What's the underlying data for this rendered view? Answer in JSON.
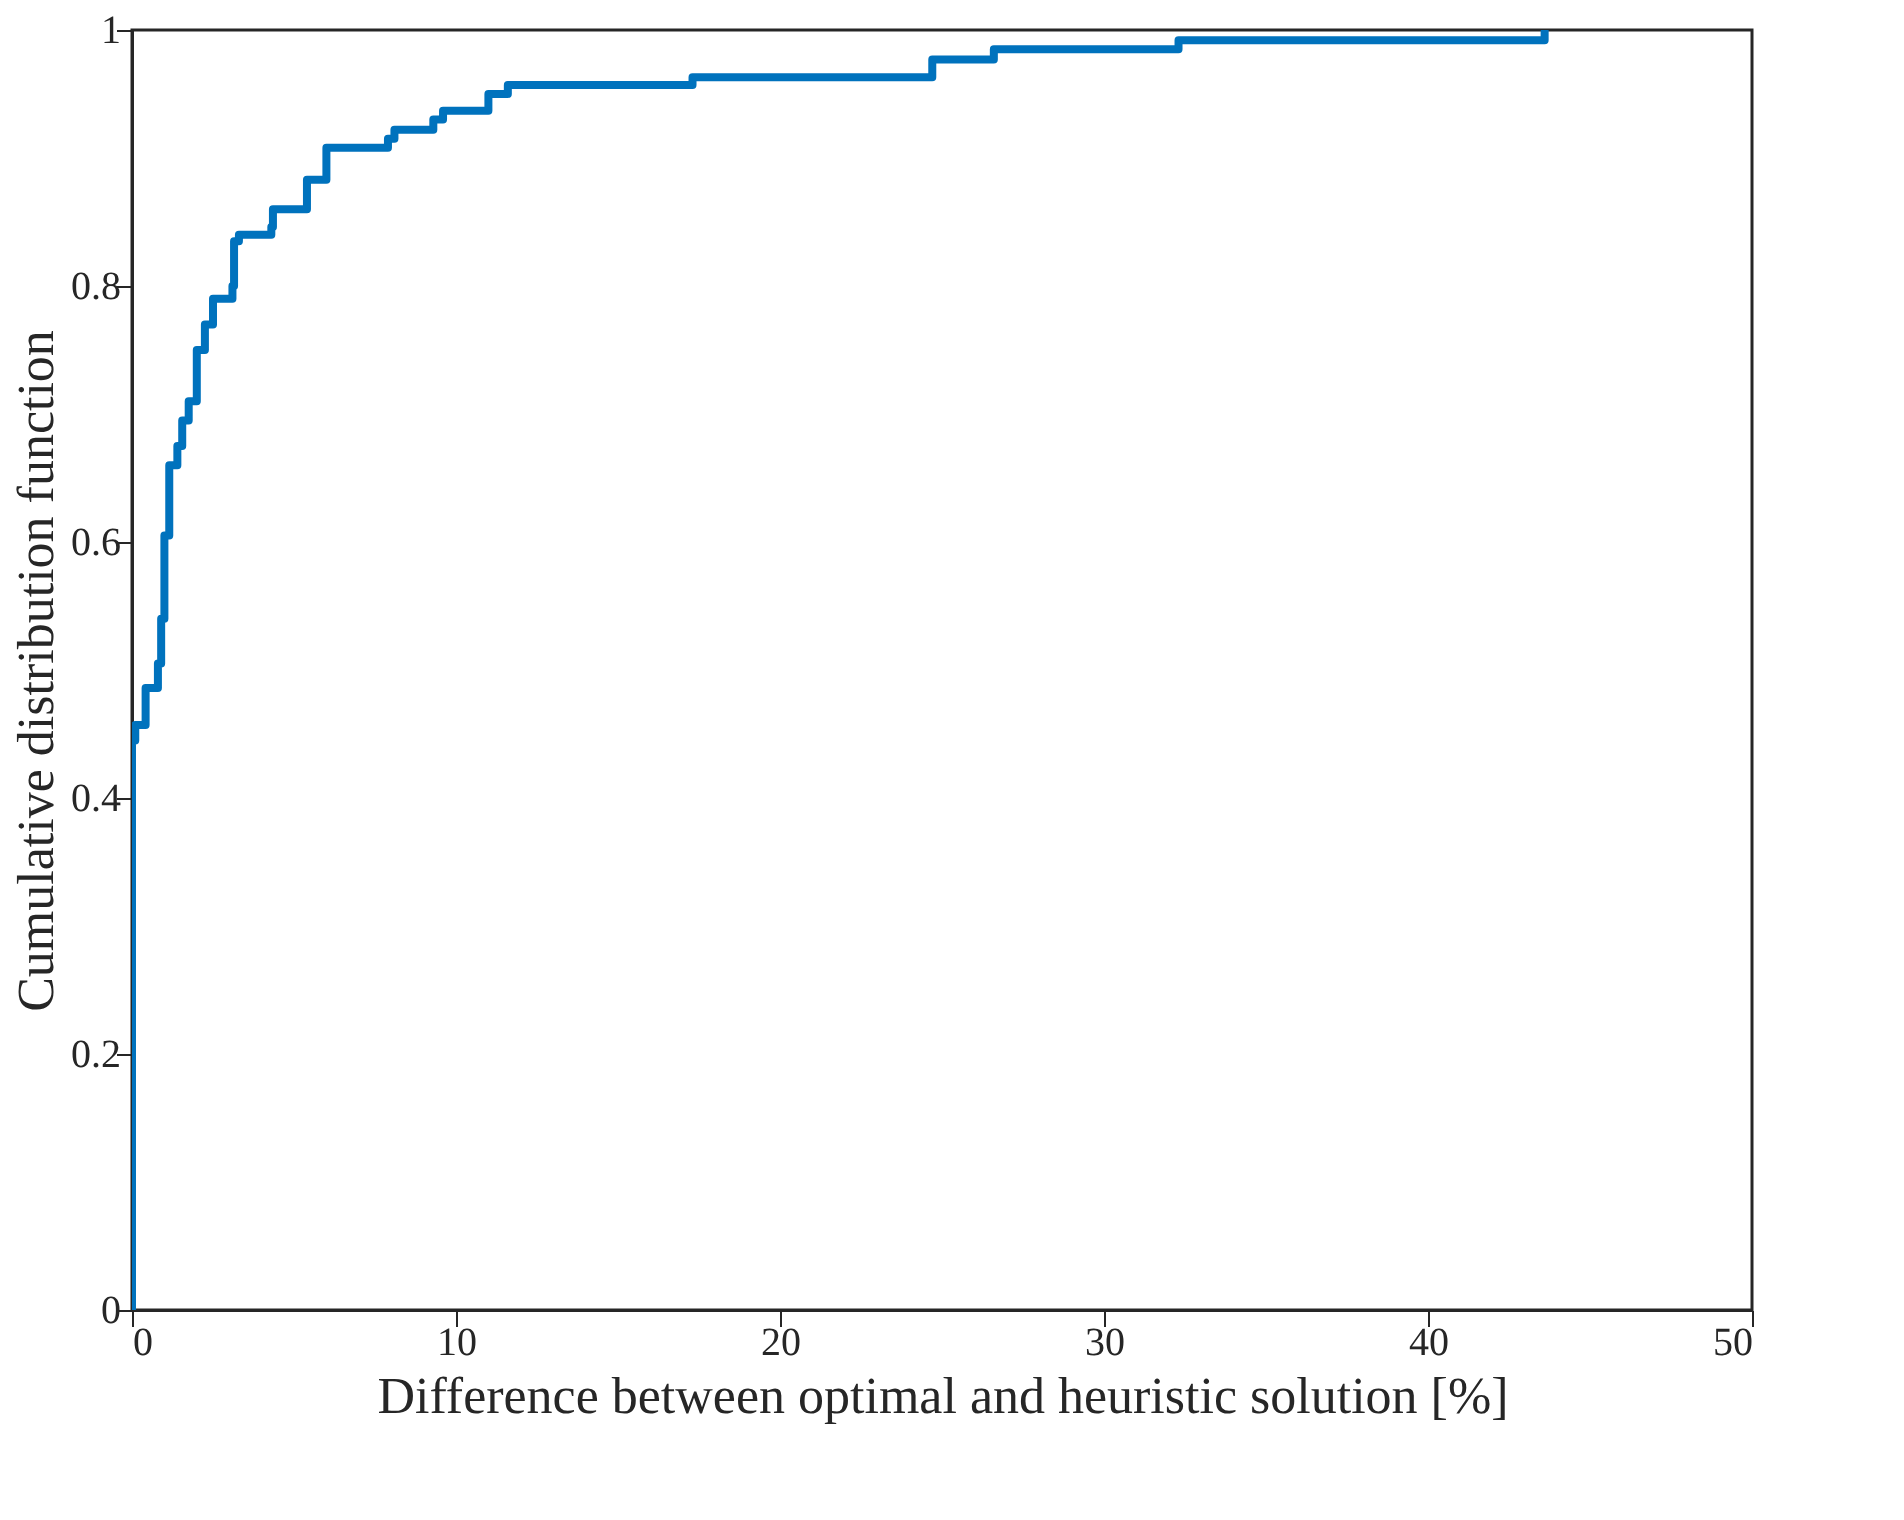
{
  "chart_data": {
    "type": "step",
    "xlabel": "Difference between optimal and heuristic solution [%]",
    "ylabel": "Cumulative distribution function",
    "xlim": [
      0,
      50
    ],
    "xticks": [
      0,
      10,
      20,
      30,
      40,
      50
    ],
    "ylim": [
      0,
      1
    ],
    "yticks": [
      0,
      0.2,
      0.4,
      0.6,
      0.8,
      1
    ],
    "grid": false,
    "series": [
      {
        "color": "#0072bd",
        "x": [
          0,
          0,
          0.1,
          0.42,
          0.8,
          0.9,
          1.0,
          1.15,
          1.4,
          1.55,
          1.75,
          2.0,
          2.25,
          2.5,
          3.1,
          3.15,
          3.3,
          4.3,
          4.35,
          5.4,
          6.0,
          7.9,
          8.1,
          9.3,
          9.6,
          11.0,
          11.6,
          17.3,
          24.7,
          26.6,
          32.3,
          43.6
        ],
        "values": [
          0,
          0.445,
          0.457,
          0.486,
          0.505,
          0.54,
          0.605,
          0.66,
          0.675,
          0.695,
          0.71,
          0.75,
          0.77,
          0.79,
          0.8,
          0.835,
          0.84,
          0.846,
          0.86,
          0.883,
          0.908,
          0.915,
          0.922,
          0.93,
          0.937,
          0.95,
          0.957,
          0.963,
          0.977,
          0.985,
          0.992,
          1.0
        ]
      }
    ]
  }
}
